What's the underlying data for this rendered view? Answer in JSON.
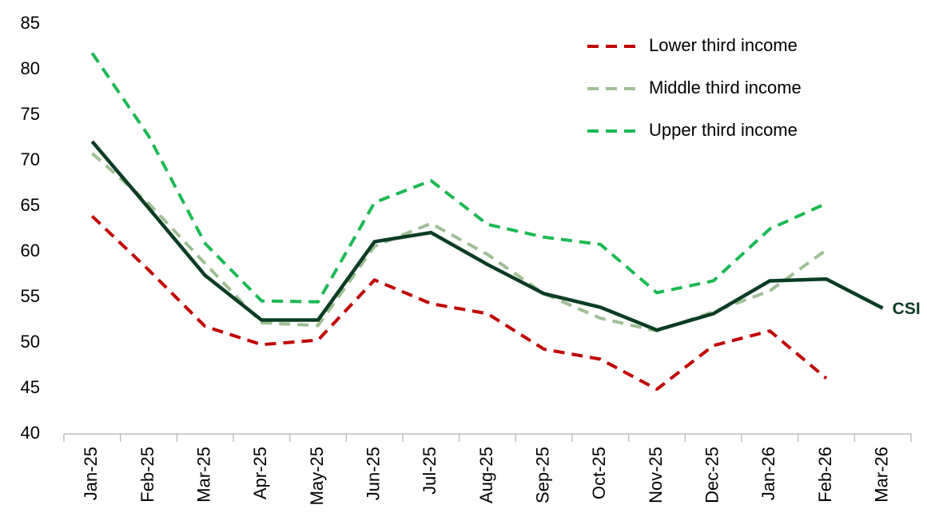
{
  "chart_data": {
    "type": "line",
    "categories": [
      "Jan-25",
      "Feb-25",
      "Mar-25",
      "Apr-25",
      "May-25",
      "Jun-25",
      "Jul-25",
      "Aug-25",
      "Sep-25",
      "Oct-25",
      "Nov-25",
      "Dec-25",
      "Jan-26",
      "Feb-26",
      "Mar-26"
    ],
    "series": [
      {
        "name": "Lower third income",
        "color": "#c00000",
        "style": "dashed",
        "values": [
          63.9,
          58.0,
          51.8,
          49.8,
          50.3,
          56.9,
          54.3,
          53.2,
          49.3,
          48.2,
          44.9,
          49.7,
          51.3,
          46.1,
          null
        ]
      },
      {
        "name": "Middle third income",
        "color": "#9fbf94",
        "style": "dashed",
        "values": [
          70.8,
          65.3,
          58.7,
          52.2,
          51.9,
          60.6,
          63.1,
          59.7,
          55.4,
          52.7,
          51.3,
          53.4,
          55.7,
          60.2,
          null
        ]
      },
      {
        "name": "Upper third income",
        "color": "#1db954",
        "style": "dashed",
        "values": [
          81.8,
          72.7,
          60.9,
          54.6,
          54.5,
          65.4,
          67.8,
          63.0,
          61.6,
          60.8,
          55.5,
          56.8,
          62.5,
          65.3,
          null
        ]
      },
      {
        "name": "CSI",
        "color": "#0b3d24",
        "style": "solid",
        "values": [
          72.1,
          64.8,
          57.4,
          52.5,
          52.5,
          61.1,
          62.1,
          58.6,
          55.4,
          53.9,
          51.4,
          53.2,
          56.8,
          57.0,
          53.8
        ]
      }
    ],
    "ylim": [
      40,
      85
    ],
    "yticks": [
      40,
      45,
      50,
      55,
      60,
      65,
      70,
      75,
      80,
      85
    ],
    "legend": "top-right"
  }
}
